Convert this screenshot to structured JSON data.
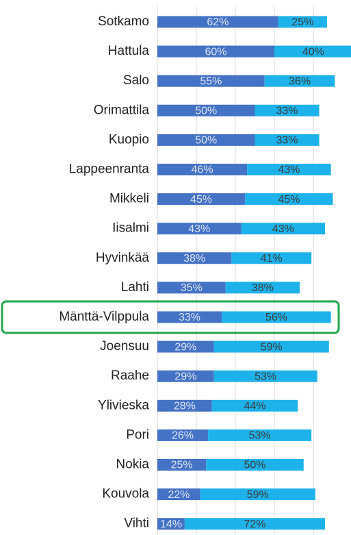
{
  "chart_data": {
    "type": "stacked_barh",
    "categories": [
      "Sotkamo",
      "Hattula",
      "Salo",
      "Orimattila",
      "Kuopio",
      "Lappeenranta",
      "Mikkeli",
      "Iisalmi",
      "Hyvinkää",
      "Lahti",
      "Mänttä-Vilppula",
      "Joensuu",
      "Raahe",
      "Ylivieska",
      "Pori",
      "Nokia",
      "Kouvola",
      "Vihti"
    ],
    "series": [
      {
        "color": "#4472c4",
        "values": [
          62,
          60,
          55,
          50,
          50,
          46,
          45,
          43,
          38,
          35,
          33,
          29,
          29,
          28,
          26,
          25,
          22,
          14
        ],
        "value_labels": [
          "62%",
          "60%",
          "55%",
          "50%",
          "50%",
          "46%",
          "45%",
          "43%",
          "38%",
          "35%",
          "33%",
          "29%",
          "29%",
          "28%",
          "26%",
          "25%",
          "22%",
          "14%"
        ]
      },
      {
        "color": "#1eb2ea",
        "values": [
          25,
          40,
          36,
          33,
          33,
          43,
          45,
          43,
          41,
          38,
          56,
          59,
          53,
          44,
          53,
          50,
          59,
          72
        ],
        "value_labels": [
          "25%",
          "40%",
          "36%",
          "33%",
          "33%",
          "43%",
          "45%",
          "43%",
          "41%",
          "38%",
          "56%",
          "59%",
          "53%",
          "44%",
          "53%",
          "50%",
          "59%",
          "72%"
        ]
      }
    ],
    "xlim": [
      0,
      100
    ],
    "xticks": [
      0,
      20,
      40,
      60,
      80,
      100
    ],
    "grid": true
  }
}
